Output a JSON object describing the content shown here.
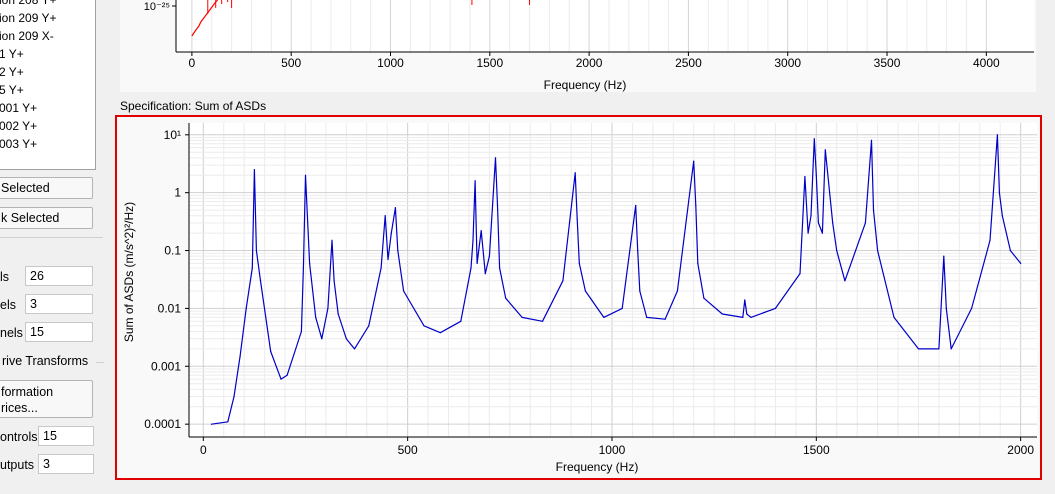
{
  "left_panel": {
    "list_items": [
      "ion 208 Y+",
      "ion 209 Y+",
      "ion 209 X-",
      "1 Y+",
      "2 Y+",
      "5 Y+",
      "001 Y+",
      "002 Y+",
      "003 Y+"
    ],
    "selected_button_1": "Selected",
    "selected_button_2": "k Selected",
    "fields": [
      {
        "label": "ls",
        "value": "26"
      },
      {
        "label": "els",
        "value": "3"
      },
      {
        "label": "nels",
        "value": "15"
      }
    ],
    "section_title": "rive Transforms",
    "transform_button_line1": "formation",
    "transform_button_line2": "rices...",
    "controls": {
      "label": "ontrols",
      "value": "15"
    },
    "outputs": {
      "label": "utputs",
      "value": "3"
    }
  },
  "top_chart": {
    "y_tick": "10⁻²⁵",
    "x_ticks": [
      "0",
      "500",
      "1000",
      "1500",
      "2000",
      "2500",
      "3000",
      "3500",
      "4000"
    ],
    "xlabel": "Frequency (Hz)",
    "color": "#ff0000"
  },
  "spec_label": "Specification: Sum of ASDs",
  "chart_data": {
    "type": "line",
    "xlabel": "Frequency (Hz)",
    "ylabel": "Sum of ASDs (m/s^2)²/Hz)",
    "y_scale": "log",
    "xlim": [
      0,
      2040
    ],
    "ylim": [
      6e-05,
      16
    ],
    "x_ticks": [
      "0",
      "500",
      "1000",
      "1500",
      "2000"
    ],
    "y_ticks": [
      "0.0001",
      "0.001",
      "0.01",
      "0.1",
      "1",
      "10¹"
    ],
    "grid": true,
    "color": "#0000c8",
    "series": [
      {
        "x": [
          20,
          60,
          75,
          90,
          105,
          120,
          125,
          130,
          140,
          165,
          190,
          205,
          240,
          245,
          250,
          260,
          275,
          290,
          305,
          315,
          320,
          330,
          350,
          370,
          405,
          435,
          445,
          452,
          460,
          470,
          476,
          490,
          540,
          580,
          630,
          655,
          660,
          665,
          670,
          680,
          690,
          700,
          715,
          720,
          725,
          740,
          780,
          830,
          880,
          910,
          915,
          920,
          935,
          980,
          1025,
          1058,
          1063,
          1068,
          1085,
          1130,
          1160,
          1200,
          1205,
          1210,
          1225,
          1270,
          1320,
          1325,
          1330,
          1340,
          1400,
          1460,
          1472,
          1480,
          1487,
          1495,
          1500,
          1505,
          1515,
          1522,
          1540,
          1550,
          1570,
          1620,
          1635,
          1640,
          1650,
          1690,
          1750,
          1800,
          1812,
          1818,
          1830,
          1880,
          1925,
          1943,
          1948,
          1955,
          1975,
          2000
        ],
        "values": [
          0.0001,
          0.00011,
          0.0003,
          0.0015,
          0.01,
          0.05,
          2.5,
          0.1,
          0.03,
          0.0018,
          0.0006,
          0.0007,
          0.004,
          0.05,
          2.0,
          0.06,
          0.007,
          0.003,
          0.01,
          0.15,
          0.03,
          0.008,
          0.003,
          0.002,
          0.005,
          0.05,
          0.4,
          0.07,
          0.2,
          0.55,
          0.1,
          0.02,
          0.005,
          0.0038,
          0.006,
          0.05,
          0.15,
          1.6,
          0.06,
          0.22,
          0.04,
          0.08,
          4.0,
          0.6,
          0.05,
          0.015,
          0.007,
          0.006,
          0.03,
          2.2,
          0.35,
          0.06,
          0.02,
          0.007,
          0.01,
          0.6,
          0.1,
          0.02,
          0.007,
          0.0065,
          0.02,
          3.5,
          0.6,
          0.06,
          0.015,
          0.008,
          0.007,
          0.014,
          0.008,
          0.007,
          0.01,
          0.04,
          1.9,
          0.2,
          0.4,
          8.5,
          2.0,
          0.3,
          0.2,
          5.5,
          0.3,
          0.1,
          0.03,
          0.3,
          8.0,
          0.5,
          0.1,
          0.007,
          0.002,
          0.002,
          0.08,
          0.01,
          0.002,
          0.01,
          0.15,
          10,
          1.0,
          0.4,
          0.1,
          0.06
        ]
      }
    ]
  }
}
